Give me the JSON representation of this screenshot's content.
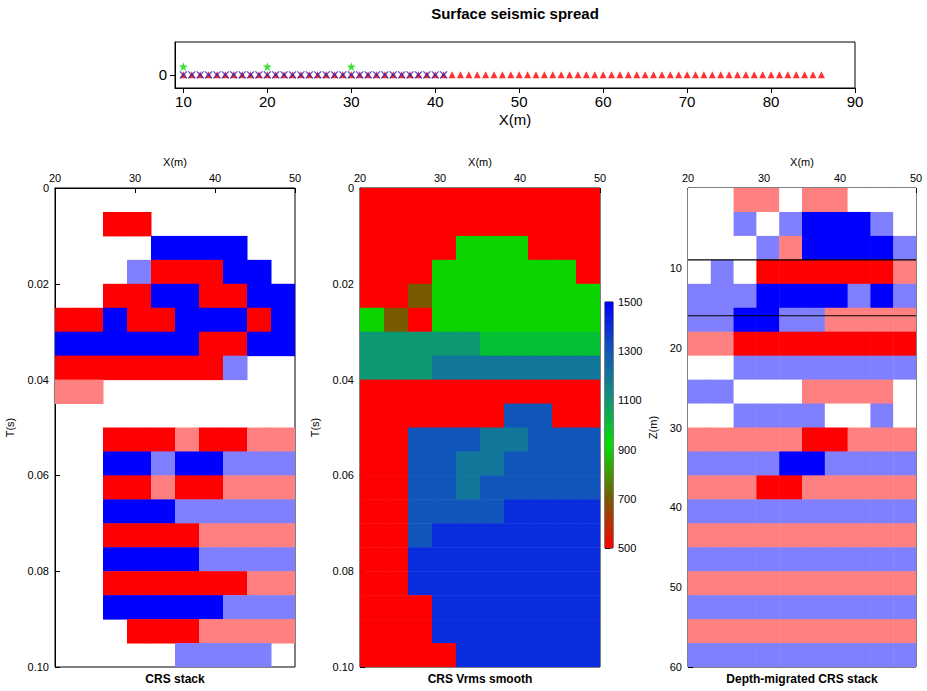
{
  "chart_data": [
    {
      "type": "scatter",
      "title": "Surface seismic spread",
      "x_label": "X(m)",
      "xlim": [
        9,
        90
      ],
      "xticks": [
        10,
        20,
        30,
        40,
        50,
        60,
        70,
        80,
        90
      ],
      "ylim": [
        -0.4,
        1
      ],
      "yticks": [
        0
      ],
      "grid": false,
      "series": [
        {
          "marker": "triangle",
          "color": "#ff0000",
          "x": [
            10,
            11,
            12,
            13,
            14,
            15,
            16,
            17,
            18,
            19,
            20,
            21,
            22,
            23,
            24,
            25,
            26,
            27,
            28,
            29,
            30,
            31,
            32,
            33,
            34,
            35,
            36,
            37,
            38,
            39,
            40,
            41,
            42,
            43,
            44,
            45,
            46,
            47,
            48,
            49,
            50,
            51,
            52,
            53,
            54,
            55,
            56,
            57,
            58,
            59,
            60,
            61,
            62,
            63,
            64,
            65,
            66,
            67,
            68,
            69,
            70,
            71,
            72,
            73,
            74,
            75,
            76,
            77,
            78,
            79,
            80,
            81,
            82,
            83,
            84,
            85,
            86
          ],
          "y": [
            0,
            0,
            0,
            0,
            0,
            0,
            0,
            0,
            0,
            0,
            0,
            0,
            0,
            0,
            0,
            0,
            0,
            0,
            0,
            0,
            0,
            0,
            0,
            0,
            0,
            0,
            0,
            0,
            0,
            0,
            0,
            0,
            0,
            0,
            0,
            0,
            0,
            0,
            0,
            0,
            0,
            0,
            0,
            0,
            0,
            0,
            0,
            0,
            0,
            0,
            0,
            0,
            0,
            0,
            0,
            0,
            0,
            0,
            0,
            0,
            0,
            0,
            0,
            0,
            0,
            0,
            0,
            0,
            0,
            0,
            0,
            0,
            0,
            0,
            0,
            0,
            0
          ]
        },
        {
          "marker": "cross",
          "color": "#2020c0",
          "x": [
            10,
            11,
            12,
            13,
            14,
            15,
            16,
            17,
            18,
            19,
            20,
            21,
            22,
            23,
            24,
            25,
            26,
            27,
            28,
            29,
            30,
            31,
            32,
            33,
            34,
            35,
            36,
            37,
            38,
            39,
            40,
            41
          ],
          "y": [
            0,
            0,
            0,
            0,
            0,
            0,
            0,
            0,
            0,
            0,
            0,
            0,
            0,
            0,
            0,
            0,
            0,
            0,
            0,
            0,
            0,
            0,
            0,
            0,
            0,
            0,
            0,
            0,
            0,
            0,
            0,
            0
          ]
        },
        {
          "marker": "star",
          "color": "#00dd00",
          "x": [
            10,
            20,
            30
          ],
          "y": [
            0.25,
            0.25,
            0.25
          ]
        }
      ]
    },
    {
      "type": "heatmap",
      "title": "CRS stack",
      "x_label": "X(m)",
      "y_label": "T(s)",
      "xlim": [
        20,
        50
      ],
      "xticks": [
        20,
        30,
        40,
        50
      ],
      "ylim": [
        0,
        0.1
      ],
      "yticks": [
        0,
        0.02,
        0.04,
        0.06,
        0.08,
        {
          "value": 0.1,
          "label": "0.10"
        }
      ],
      "x_bins": [
        20,
        23,
        26,
        29,
        32,
        35,
        38,
        41,
        44,
        47,
        50
      ],
      "y_bins": [
        0,
        0.005,
        0.01,
        0.015,
        0.02,
        0.025,
        0.03,
        0.035,
        0.04,
        0.045,
        0.05,
        0.055,
        0.06,
        0.065,
        0.07,
        0.075,
        0.08,
        0.085,
        0.09,
        0.095,
        0.1
      ],
      "cells": [
        [
          null,
          null,
          null,
          null,
          null,
          null,
          null,
          null,
          null,
          null
        ],
        [
          null,
          null,
          1,
          1,
          null,
          null,
          null,
          null,
          null,
          null
        ],
        [
          null,
          null,
          null,
          null,
          -1,
          -1,
          -1,
          -1,
          null,
          null
        ],
        [
          null,
          null,
          null,
          -0.5,
          1,
          1,
          1,
          -1,
          -1,
          null
        ],
        [
          null,
          null,
          1,
          1,
          -1,
          -1,
          1,
          1,
          -1,
          -1
        ],
        [
          1,
          1,
          -1,
          1,
          1,
          -1,
          -1,
          -1,
          1,
          -1
        ],
        [
          -1,
          -1,
          -1,
          -1,
          -1,
          -1,
          1,
          1,
          -1,
          -1
        ],
        [
          1,
          1,
          1,
          1,
          1,
          1,
          1,
          -0.5,
          null,
          null
        ],
        [
          0.5,
          0.5,
          null,
          null,
          null,
          null,
          null,
          null,
          null,
          null
        ],
        [
          null,
          null,
          null,
          null,
          null,
          null,
          null,
          null,
          null,
          null
        ],
        [
          null,
          null,
          1,
          1,
          1,
          0.5,
          1,
          1,
          0.5,
          0.5
        ],
        [
          null,
          null,
          -1,
          -1,
          -0.5,
          -1,
          -1,
          -0.5,
          -0.5,
          -0.5
        ],
        [
          null,
          null,
          1,
          1,
          0.5,
          1,
          1,
          0.5,
          0.5,
          0.5
        ],
        [
          null,
          null,
          -1,
          -1,
          -1,
          -0.5,
          -0.5,
          -0.5,
          -0.5,
          -0.5
        ],
        [
          null,
          null,
          1,
          1,
          1,
          1,
          0.5,
          0.5,
          0.5,
          0.5
        ],
        [
          null,
          null,
          -1,
          -1,
          -1,
          -1,
          -0.5,
          -0.5,
          -0.5,
          -0.5
        ],
        [
          null,
          null,
          1,
          1,
          1,
          1,
          1,
          1,
          0.5,
          0.5
        ],
        [
          null,
          null,
          -1,
          -1,
          -1,
          -1,
          -1,
          -0.5,
          -0.5,
          -0.5
        ],
        [
          null,
          null,
          null,
          1,
          1,
          1,
          0.5,
          0.5,
          0.5,
          0.5
        ],
        [
          null,
          null,
          null,
          null,
          null,
          -0.5,
          -0.5,
          -0.5,
          -0.5,
          null
        ]
      ]
    },
    {
      "type": "heatmap",
      "title": "CRS Vrms smooth",
      "x_label": "X(m)",
      "y_label": "T(s)",
      "xlim": [
        20,
        50
      ],
      "xticks": [
        20,
        30,
        40,
        50
      ],
      "ylim": [
        0,
        0.1
      ],
      "yticks": [
        0,
        0.02,
        0.04,
        0.06,
        0.08,
        {
          "value": 0.1,
          "label": "0.10"
        }
      ],
      "colorbar_range": [
        500,
        1500
      ],
      "colorbar_ticks": [
        500,
        700,
        900,
        1100,
        1300,
        1500
      ],
      "x_bins": [
        20,
        23,
        26,
        29,
        32,
        35,
        38,
        41,
        44,
        47,
        50
      ],
      "y_bins": [
        0,
        0.005,
        0.01,
        0.015,
        0.02,
        0.025,
        0.03,
        0.035,
        0.04,
        0.045,
        0.05,
        0.055,
        0.06,
        0.065,
        0.07,
        0.075,
        0.08,
        0.085,
        0.09,
        0.095,
        0.1
      ],
      "cells": [
        [
          500,
          500,
          500,
          500,
          500,
          500,
          500,
          500,
          500,
          500
        ],
        [
          500,
          500,
          500,
          500,
          500,
          500,
          500,
          500,
          500,
          500
        ],
        [
          500,
          500,
          500,
          500,
          900,
          900,
          900,
          500,
          500,
          500
        ],
        [
          500,
          500,
          500,
          900,
          900,
          900,
          900,
          900,
          900,
          500
        ],
        [
          500,
          500,
          700,
          900,
          900,
          900,
          900,
          900,
          900,
          900
        ],
        [
          900,
          700,
          500,
          900,
          900,
          900,
          900,
          900,
          900,
          900
        ],
        [
          1100,
          1100,
          1100,
          1100,
          1100,
          1000,
          1000,
          1000,
          1000,
          1000
        ],
        [
          1100,
          1100,
          1100,
          1200,
          1200,
          1200,
          1200,
          1200,
          1200,
          1200
        ],
        [
          500,
          500,
          500,
          500,
          500,
          500,
          500,
          500,
          500,
          500
        ],
        [
          500,
          500,
          500,
          500,
          500,
          500,
          1300,
          1300,
          500,
          500
        ],
        [
          500,
          500,
          1300,
          1300,
          1300,
          1200,
          1200,
          1300,
          1300,
          1300
        ],
        [
          500,
          500,
          1300,
          1300,
          1200,
          1200,
          1300,
          1300,
          1300,
          1300
        ],
        [
          500,
          500,
          1300,
          1300,
          1200,
          1300,
          1300,
          1300,
          1300,
          1300
        ],
        [
          500,
          500,
          1300,
          1300,
          1300,
          1300,
          1400,
          1400,
          1400,
          1400
        ],
        [
          500,
          500,
          1300,
          1400,
          1400,
          1400,
          1400,
          1400,
          1400,
          1400
        ],
        [
          500,
          500,
          1400,
          1400,
          1400,
          1400,
          1400,
          1400,
          1400,
          1400
        ],
        [
          500,
          500,
          1400,
          1400,
          1400,
          1400,
          1400,
          1400,
          1400,
          1400
        ],
        [
          500,
          500,
          500,
          1400,
          1400,
          1400,
          1400,
          1400,
          1400,
          1400
        ],
        [
          500,
          500,
          500,
          1400,
          1400,
          1400,
          1400,
          1400,
          1400,
          1400
        ],
        [
          500,
          500,
          500,
          500,
          1400,
          1400,
          1400,
          1400,
          1400,
          1400
        ]
      ]
    },
    {
      "type": "heatmap",
      "title": "Depth-migrated CRS stack",
      "x_label": "X(m)",
      "y_label": "Z(m)",
      "xlim": [
        20,
        50
      ],
      "xticks": [
        20,
        30,
        40,
        50
      ],
      "ylim": [
        0,
        60
      ],
      "yticks": [
        10,
        20,
        30,
        40,
        50,
        60
      ],
      "horizontal_lines": [
        9,
        16
      ],
      "x_bins": [
        20,
        23,
        26,
        29,
        32,
        35,
        38,
        41,
        44,
        47,
        50
      ],
      "y_bins": [
        0,
        3,
        6,
        9,
        12,
        15,
        18,
        21,
        24,
        27,
        30,
        33,
        36,
        39,
        42,
        45,
        48,
        51,
        54,
        57,
        60
      ],
      "cells": [
        [
          0,
          0,
          0.5,
          0.5,
          0,
          0.5,
          0.5,
          0,
          0,
          0
        ],
        [
          0,
          0,
          -0.5,
          0,
          -0.5,
          -1,
          -1,
          -1,
          -0.5,
          0
        ],
        [
          0,
          0,
          0,
          -0.5,
          0.5,
          -1,
          -1,
          -1,
          -1,
          -0.5
        ],
        [
          0,
          -0.5,
          0,
          1,
          1,
          1,
          1,
          1,
          1,
          0.5
        ],
        [
          -0.5,
          -0.5,
          -0.5,
          -1,
          -1,
          -1,
          -1,
          -0.5,
          -1,
          -0.5
        ],
        [
          -0.5,
          -0.5,
          -1,
          -1,
          -0.5,
          -0.5,
          0.5,
          0.5,
          0.5,
          0.5
        ],
        [
          0.5,
          0.5,
          1,
          1,
          1,
          1,
          1,
          1,
          1,
          1
        ],
        [
          0,
          0,
          -0.5,
          -0.5,
          -0.5,
          -0.5,
          -0.5,
          -0.5,
          -0.5,
          -0.5
        ],
        [
          -0.5,
          -0.5,
          0,
          0,
          0,
          0.5,
          0.5,
          0.5,
          0.5,
          0
        ],
        [
          0,
          0,
          -0.5,
          -0.5,
          -0.5,
          -0.5,
          0,
          0,
          -0.5,
          0
        ],
        [
          0.5,
          0.5,
          0.5,
          0.5,
          0.5,
          1,
          1,
          0.5,
          0.5,
          0.5
        ],
        [
          -0.5,
          -0.5,
          -0.5,
          -0.5,
          -1,
          -1,
          -0.5,
          -0.5,
          -0.5,
          -0.5
        ],
        [
          0.5,
          0.5,
          0.5,
          1,
          1,
          0.5,
          0.5,
          0.5,
          0.5,
          0.5
        ],
        [
          -0.5,
          -0.5,
          -0.5,
          -0.5,
          -0.5,
          -0.5,
          -0.5,
          -0.5,
          -0.5,
          -0.5
        ],
        [
          0.5,
          0.5,
          0.5,
          0.5,
          0.5,
          0.5,
          0.5,
          0.5,
          0.5,
          0.5
        ],
        [
          -0.5,
          -0.5,
          -0.5,
          -0.5,
          -0.5,
          -0.5,
          -0.5,
          -0.5,
          -0.5,
          -0.5
        ],
        [
          0.5,
          0.5,
          0.5,
          0.5,
          0.5,
          0.5,
          0.5,
          0.5,
          0.5,
          0.5
        ],
        [
          -0.5,
          -0.5,
          -0.5,
          -0.5,
          -0.5,
          -0.5,
          -0.5,
          -0.5,
          -0.5,
          -0.5
        ],
        [
          0.5,
          0.5,
          0.5,
          0.5,
          0.5,
          0.5,
          0.5,
          0.5,
          0.5,
          0.5
        ],
        [
          -0.5,
          -0.5,
          -0.5,
          -0.5,
          -0.5,
          -0.5,
          -0.5,
          -0.5,
          -0.5,
          -0.5
        ]
      ]
    }
  ]
}
